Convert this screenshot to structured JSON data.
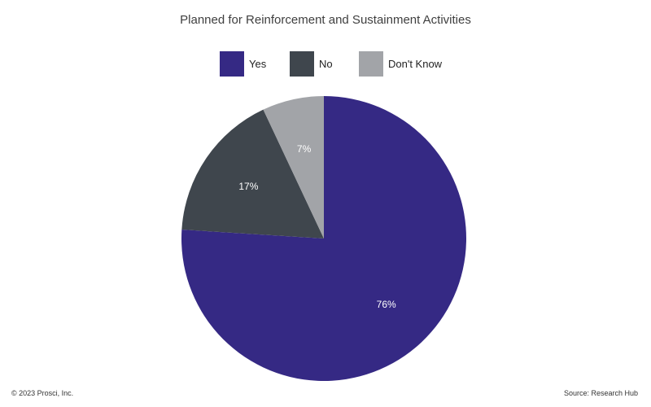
{
  "chart_data": {
    "type": "pie",
    "title": "Planned for Reinforcement and Sustainment Activities",
    "categories": [
      "Yes",
      "No",
      "Don't Know"
    ],
    "values": [
      76,
      17,
      7
    ],
    "labels": [
      "76%",
      "17%",
      "7%"
    ],
    "colors": [
      "#352984",
      "#3f464d",
      "#a2a4a8"
    ],
    "legend_position": "top-center",
    "start": "12 o'clock",
    "direction": "clockwise"
  },
  "legend": {
    "yes": "Yes",
    "no": "No",
    "dont_know": "Don't Know"
  },
  "footer": {
    "copyright": "© 2023 Prosci, Inc.",
    "source": "Source: Research Hub"
  }
}
